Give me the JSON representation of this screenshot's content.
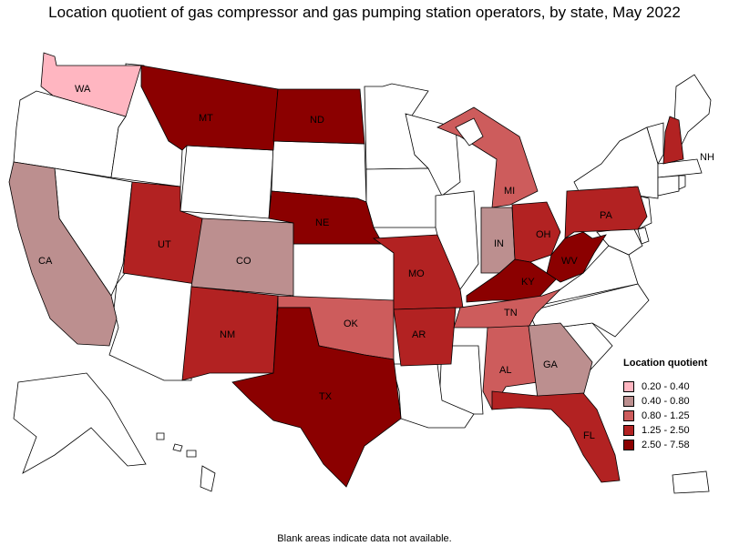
{
  "title": "Location quotient of gas compressor and gas pumping station operators, by state, May 2022",
  "footnote": "Blank areas indicate data not available.",
  "legend": {
    "title": "Location quotient",
    "items": [
      {
        "label": "0.20 - 0.40",
        "color": "#ffb6c1"
      },
      {
        "label": "0.40 - 0.80",
        "color": "#bc8f8f"
      },
      {
        "label": "0.80 - 1.25",
        "color": "#cd5c5c"
      },
      {
        "label": "1.25 - 2.50",
        "color": "#b22222"
      },
      {
        "label": "2.50 - 7.58",
        "color": "#8b0000"
      }
    ]
  },
  "states": [
    {
      "code": "WA",
      "class": 0
    },
    {
      "code": "CA",
      "class": 1
    },
    {
      "code": "CO",
      "class": 1
    },
    {
      "code": "GA",
      "class": 1
    },
    {
      "code": "IN",
      "class": 1
    },
    {
      "code": "MI",
      "class": 2
    },
    {
      "code": "TN",
      "class": 2
    },
    {
      "code": "AL",
      "class": 2
    },
    {
      "code": "OK",
      "class": 2
    },
    {
      "code": "UT",
      "class": 3
    },
    {
      "code": "NM",
      "class": 3
    },
    {
      "code": "MO",
      "class": 3
    },
    {
      "code": "AR",
      "class": 3
    },
    {
      "code": "OH",
      "class": 3
    },
    {
      "code": "PA",
      "class": 3
    },
    {
      "code": "NH",
      "class": 3
    },
    {
      "code": "FL",
      "class": 3
    },
    {
      "code": "MT",
      "class": 4
    },
    {
      "code": "ND",
      "class": 4
    },
    {
      "code": "NE",
      "class": 4
    },
    {
      "code": "TX",
      "class": 4
    },
    {
      "code": "KY",
      "class": 4
    },
    {
      "code": "WV",
      "class": 4
    }
  ]
}
